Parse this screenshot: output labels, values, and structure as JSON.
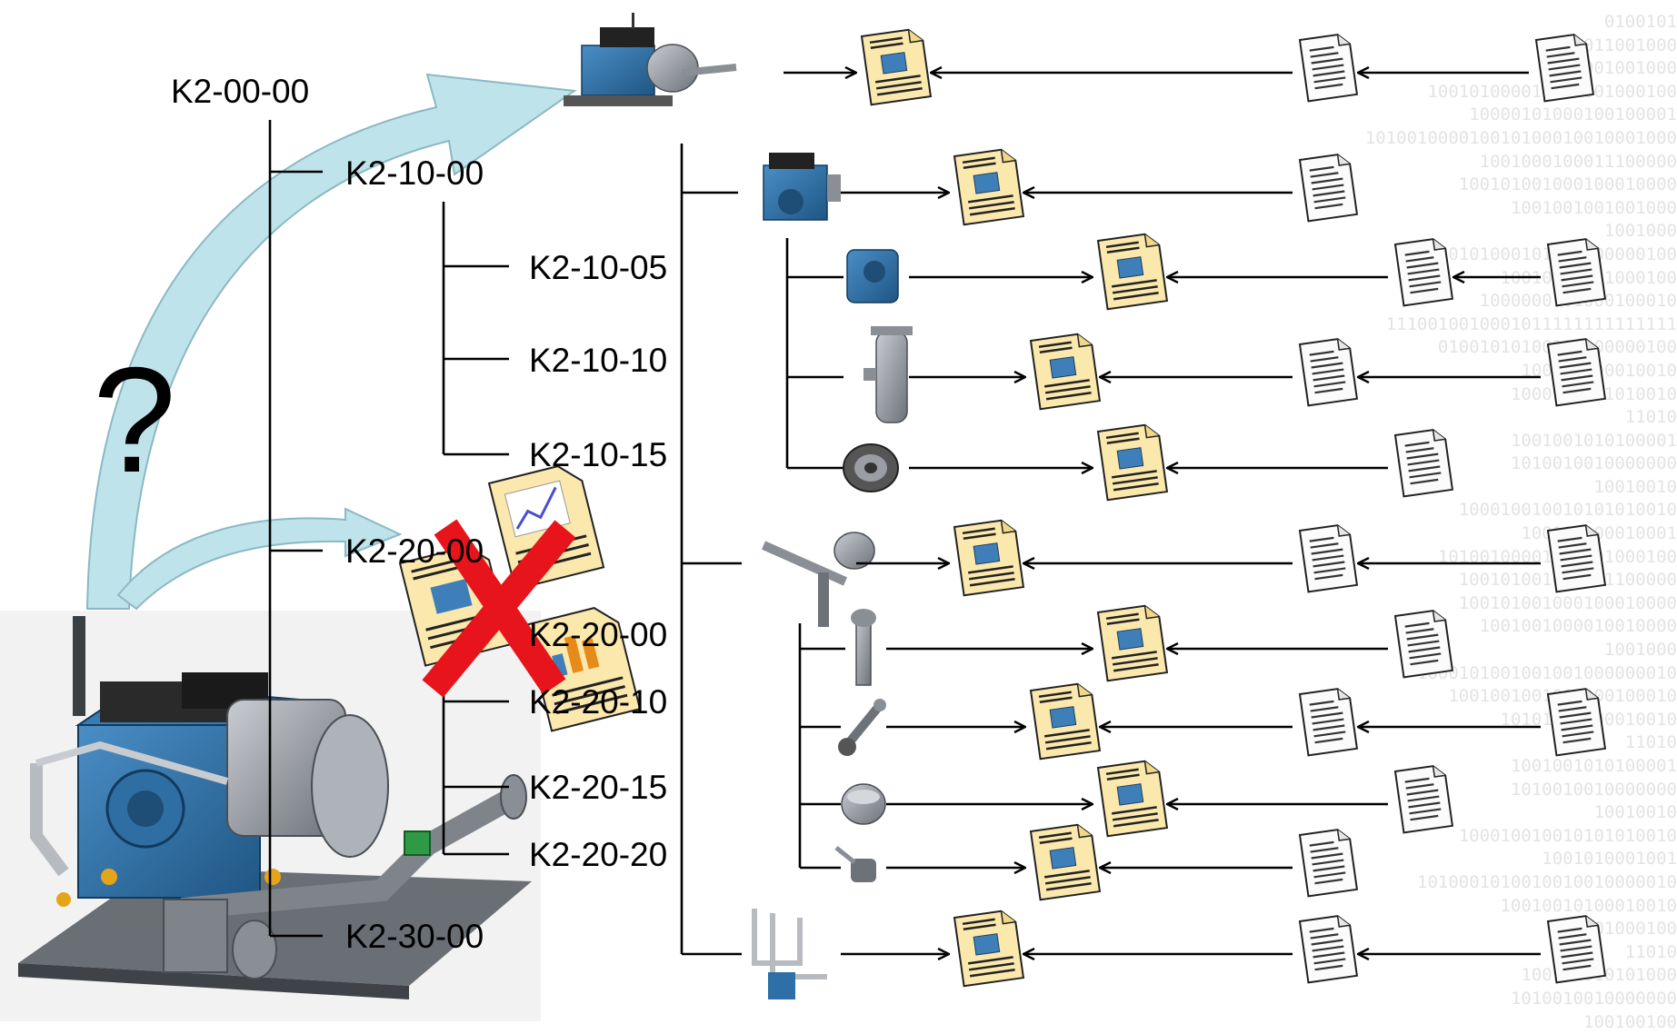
{
  "tree": {
    "root": "K2-00-00",
    "level1": [
      "K2-10-00",
      "K2-20-00",
      "K2-30-00"
    ],
    "group_10": [
      "K2-10-05",
      "K2-10-10",
      "K2-10-15"
    ],
    "group_20": [
      "K2-20-00",
      "K2-20-10",
      "K2-20-15",
      "K2-20-20"
    ]
  },
  "question_mark": "?",
  "background_binary": [
    "0100101",
    "10011001000",
    "1001001001000",
    "100101000010101001000100",
    "10000101000100100001",
    "101001000010010100010010001000",
    "1001000100011100000",
    "100101001000100010000",
    "1001001001001000",
    "1001000",
    "10101000101001000000100",
    "10010001001000100",
    "1000000101000100010",
    "1110010010001011111111111111",
    "01001010100100100000100",
    "100100100010010",
    "1000100101010010",
    "11010",
    "1001001010100001",
    "1010010010000000",
    "10010010",
    "100010010010101010010",
    "100100100010001",
    "10100100001001001000100",
    "100101001001011100000",
    "100101001000100010000",
    "1001001000010010000",
    "1001000",
    "1000101001001001000000010",
    "1001001001001000100010",
    "10101000100010010",
    "11010",
    "1001001010100001",
    "1010010010000000",
    "10010010",
    "100010010010101010010",
    "1001010001001",
    "1010001010010010010000010",
    "10010010100010010",
    "100101000100",
    "11010",
    "100101010101000",
    "1010010010000000",
    "100100100"
  ],
  "colors": {
    "arrow_fill": "#bfe3ea",
    "arrow_stroke": "#8ab9c3",
    "document_fill": "#fbe8ad",
    "cross_color": "#e8141b",
    "machine_blue": "#2d6fa6",
    "metal_grey": "#8a8f96"
  },
  "icons": [
    "compressor-unit-icon",
    "engine-block-icon",
    "cylinder-head-icon",
    "filter-housing-icon",
    "pulley-wheel-icon",
    "crankshaft-assembly-icon",
    "crank-part-icon",
    "connecting-rod-icon",
    "piston-icon",
    "valve-small-icon",
    "pipework-icon",
    "cad-document-icon",
    "text-document-icon",
    "chart-document-icon",
    "bar-chart-document-icon",
    "red-cross-icon"
  ]
}
